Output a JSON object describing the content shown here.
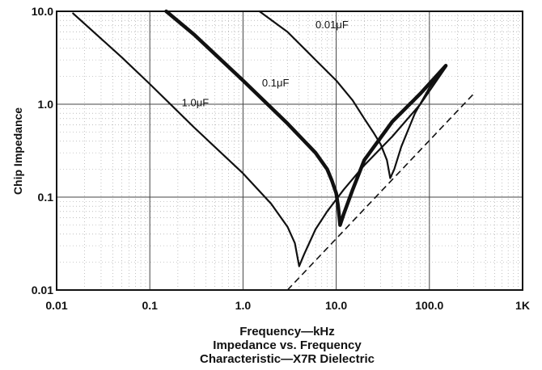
{
  "chart_data": {
    "type": "line",
    "title": "Impedance vs. Frequency",
    "subtitle": "Characteristic—X7R Dielectric",
    "xlabel": "Frequency—kHz",
    "ylabel": "Chip Impedance",
    "x_scale": "log",
    "y_scale": "log",
    "xlim": [
      0.01,
      1000
    ],
    "ylim": [
      0.01,
      10
    ],
    "grid": true,
    "x_tick_labels": [
      "0.01",
      "0.1",
      "1.0",
      "10.0",
      "100.0",
      "1K"
    ],
    "y_tick_labels": [
      "0.01",
      "0.1",
      "1.0",
      "10.0"
    ],
    "series": [
      {
        "name": "1.0μF",
        "label_text": "1.0μF",
        "points": [
          [
            0.015,
            9.5
          ],
          [
            0.05,
            3.2
          ],
          [
            0.1,
            1.65
          ],
          [
            0.3,
            0.56
          ],
          [
            1.0,
            0.18
          ],
          [
            2.0,
            0.085
          ],
          [
            3.0,
            0.048
          ],
          [
            3.6,
            0.032
          ],
          [
            4.0,
            0.018
          ],
          [
            4.5,
            0.024
          ],
          [
            6.0,
            0.045
          ],
          [
            8.0,
            0.07
          ],
          [
            12.0,
            0.12
          ],
          [
            20.0,
            0.22
          ],
          [
            40.0,
            0.45
          ],
          [
            80.0,
            1.0
          ],
          [
            150.0,
            2.5
          ]
        ]
      },
      {
        "name": "0.1μF",
        "label_text": "0.1μF",
        "points": [
          [
            0.15,
            10.0
          ],
          [
            0.3,
            5.6
          ],
          [
            1.0,
            1.8
          ],
          [
            3.0,
            0.62
          ],
          [
            6.0,
            0.3
          ],
          [
            8.0,
            0.2
          ],
          [
            9.0,
            0.15
          ],
          [
            10.0,
            0.11
          ],
          [
            10.5,
            0.08
          ],
          [
            11.0,
            0.05
          ],
          [
            12.0,
            0.065
          ],
          [
            15.0,
            0.12
          ],
          [
            20.0,
            0.25
          ],
          [
            40.0,
            0.65
          ],
          [
            80.0,
            1.3
          ],
          [
            150.0,
            2.6
          ]
        ]
      },
      {
        "name": "0.01μF",
        "label_text": "0.01μF",
        "points": [
          [
            1.5,
            10.0
          ],
          [
            3.0,
            6.0
          ],
          [
            6.0,
            3.0
          ],
          [
            10.0,
            1.8
          ],
          [
            15.0,
            1.1
          ],
          [
            20.0,
            0.7
          ],
          [
            25.0,
            0.5
          ],
          [
            30.0,
            0.37
          ],
          [
            35.0,
            0.25
          ],
          [
            38.0,
            0.16
          ],
          [
            42.0,
            0.2
          ],
          [
            50.0,
            0.35
          ],
          [
            70.0,
            0.8
          ],
          [
            100.0,
            1.5
          ],
          [
            150.0,
            2.6
          ]
        ]
      }
    ],
    "reference_line": {
      "style": "dashed",
      "points": [
        [
          3.0,
          0.01
        ],
        [
          300.0,
          1.3
        ]
      ]
    }
  }
}
